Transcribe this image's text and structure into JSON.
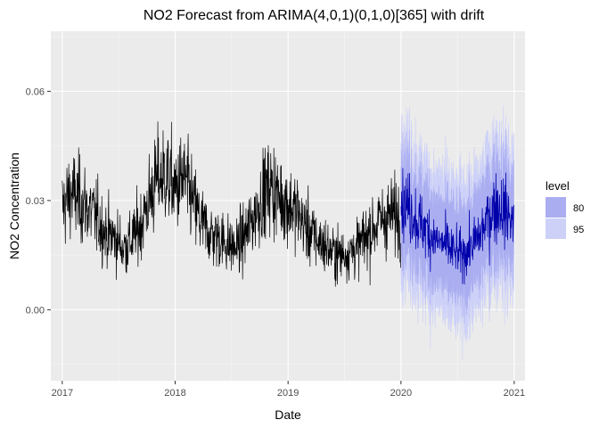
{
  "chart_data": {
    "type": "line",
    "title": "NO2 Forecast from ARIMA(4,0,1)(0,1,0)[365] with drift",
    "xlabel": "Date",
    "ylabel": "NO2 Concentration",
    "xlim": [
      "2016-11-25",
      "2021-02-05"
    ],
    "ylim": [
      -0.0195,
      0.0765
    ],
    "x_ticks": [
      "2017-01-01",
      "2018-01-01",
      "2019-01-01",
      "2020-01-01",
      "2021-01-01"
    ],
    "x_tick_labels": [
      "2017",
      "2018",
      "2019",
      "2020",
      "2021"
    ],
    "y_ticks": [
      0.0,
      0.03,
      0.06
    ],
    "y_tick_labels": [
      "0.00",
      "0.03",
      "0.06"
    ],
    "grid": true,
    "legend": {
      "title": "level",
      "placement": "right",
      "entries": [
        {
          "label": "80",
          "color": "#aaaef0"
        },
        {
          "label": "95",
          "color": "#cdd1f8"
        }
      ]
    },
    "colors": {
      "panel": "#ebebeb",
      "grid_major": "#ffffff",
      "observed": "#000000",
      "forecast_mean": "#0000aa",
      "band_80": "#aaaef0",
      "band_95": "#cdd1f8"
    },
    "observed": {
      "start": "2017-01-01",
      "end": "2019-12-31",
      "frequency": "daily",
      "weekly_points": [
        [
          "2017-01-01",
          0.028
        ],
        [
          "2017-01-29",
          0.032
        ],
        [
          "2017-02-26",
          0.03
        ],
        [
          "2017-03-26",
          0.028
        ],
        [
          "2017-04-23",
          0.025
        ],
        [
          "2017-05-21",
          0.021
        ],
        [
          "2017-06-18",
          0.02
        ],
        [
          "2017-07-16",
          0.017
        ],
        [
          "2017-08-13",
          0.019
        ],
        [
          "2017-09-10",
          0.023
        ],
        [
          "2017-10-08",
          0.03
        ],
        [
          "2017-11-05",
          0.036
        ],
        [
          "2017-12-03",
          0.037
        ],
        [
          "2018-01-01",
          0.033
        ],
        [
          "2018-01-29",
          0.036
        ],
        [
          "2018-02-26",
          0.03
        ],
        [
          "2018-03-26",
          0.024
        ],
        [
          "2018-04-23",
          0.021
        ],
        [
          "2018-05-21",
          0.02
        ],
        [
          "2018-06-18",
          0.018
        ],
        [
          "2018-07-16",
          0.017
        ],
        [
          "2018-08-13",
          0.02
        ],
        [
          "2018-09-10",
          0.025
        ],
        [
          "2018-10-08",
          0.031
        ],
        [
          "2018-11-05",
          0.034
        ],
        [
          "2018-12-03",
          0.031
        ],
        [
          "2019-01-01",
          0.029
        ],
        [
          "2019-01-29",
          0.027
        ],
        [
          "2019-02-26",
          0.023
        ],
        [
          "2019-03-26",
          0.02
        ],
        [
          "2019-04-23",
          0.018
        ],
        [
          "2019-05-21",
          0.016
        ],
        [
          "2019-06-18",
          0.015
        ],
        [
          "2019-07-16",
          0.016
        ],
        [
          "2019-08-13",
          0.017
        ],
        [
          "2019-09-10",
          0.02
        ],
        [
          "2019-10-08",
          0.023
        ],
        [
          "2019-11-05",
          0.025
        ],
        [
          "2019-12-03",
          0.026
        ],
        [
          "2019-12-31",
          0.026
        ]
      ],
      "max": 0.071,
      "min": 0.005
    },
    "forecast": {
      "start": "2020-01-01",
      "end": "2020-12-31",
      "frequency": "daily",
      "mean_points": [
        [
          "2020-01-01",
          0.03
        ],
        [
          "2020-01-29",
          0.028
        ],
        [
          "2020-02-26",
          0.024
        ],
        [
          "2020-03-25",
          0.022
        ],
        [
          "2020-04-22",
          0.019
        ],
        [
          "2020-05-20",
          0.018
        ],
        [
          "2020-06-17",
          0.016
        ],
        [
          "2020-07-15",
          0.015
        ],
        [
          "2020-08-12",
          0.017
        ],
        [
          "2020-09-09",
          0.02
        ],
        [
          "2020-10-07",
          0.025
        ],
        [
          "2020-11-04",
          0.029
        ],
        [
          "2020-12-02",
          0.027
        ],
        [
          "2020-12-31",
          0.024
        ]
      ],
      "band_80_halfwidth": 0.011,
      "band_95_halfwidth": 0.018,
      "max": 0.073,
      "min": -0.02
    }
  }
}
